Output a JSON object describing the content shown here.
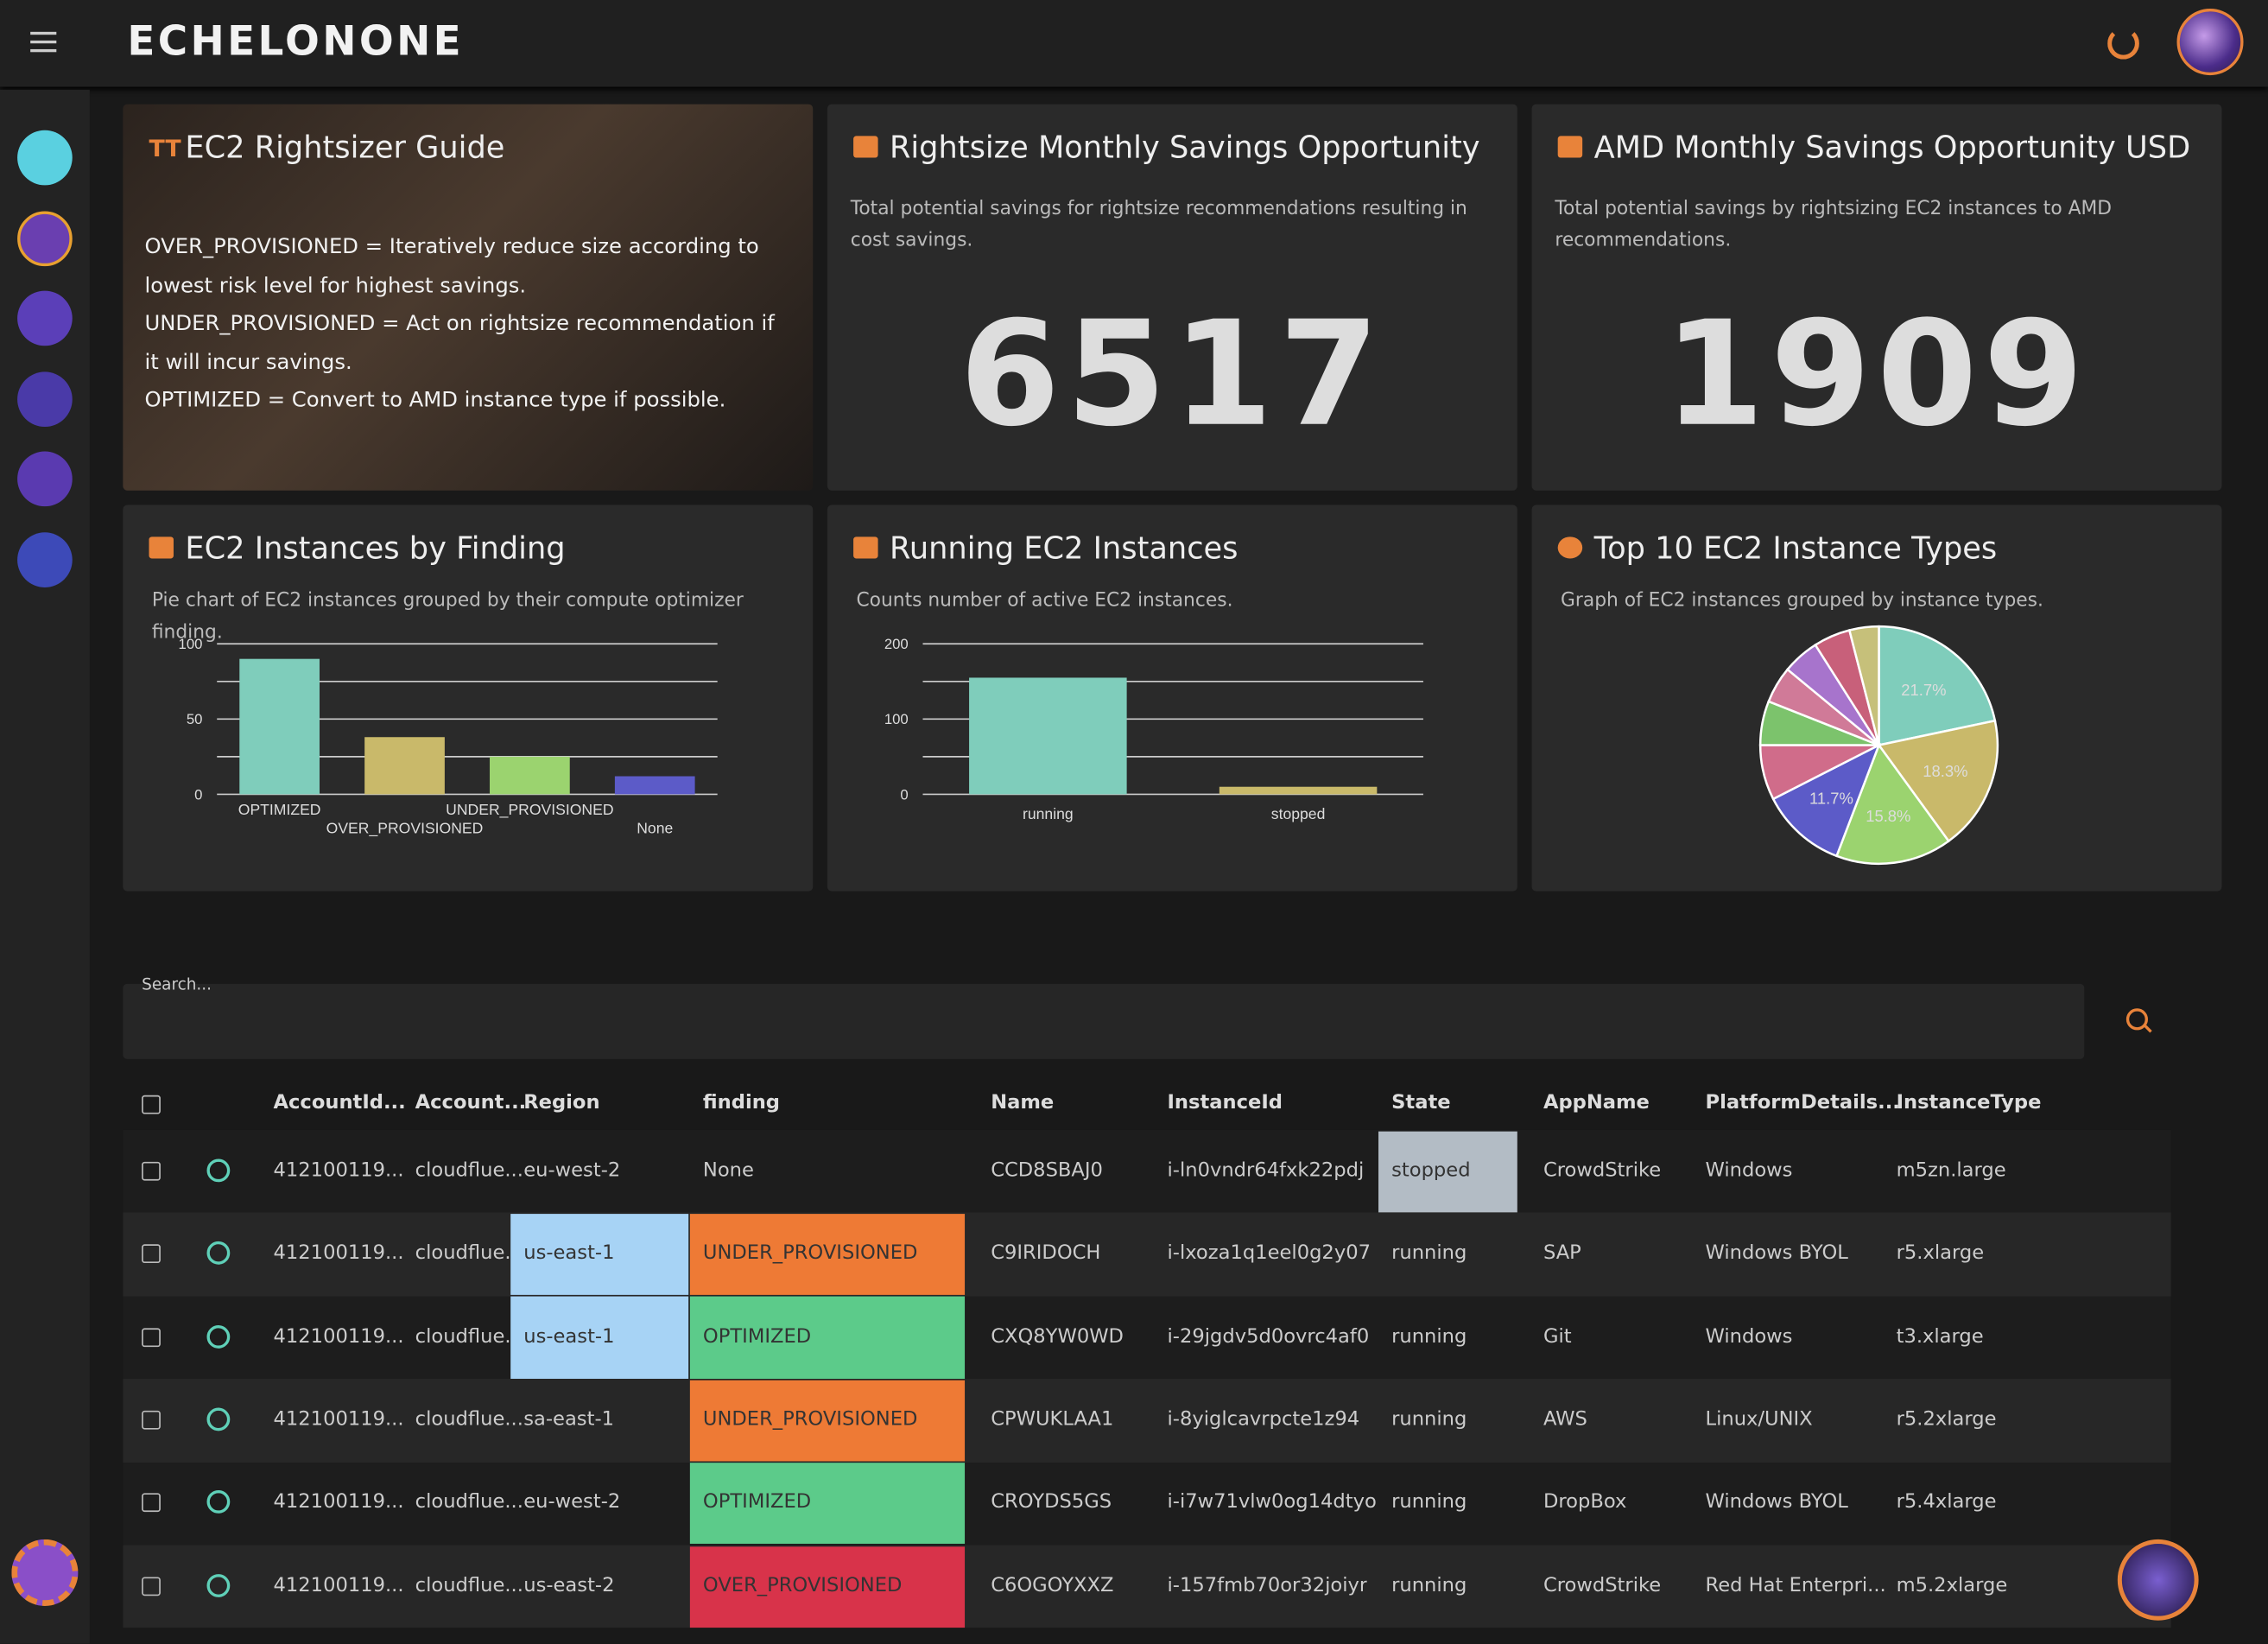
{
  "header": {
    "logo": "ECHELONONE"
  },
  "cards": [
    {
      "title": "EC2 Rightsizer Guide",
      "lines": [
        "OVER_PROVISIONED = Iteratively reduce size according to lowest risk level for highest savings.",
        "UNDER_PROVISIONED = Act on rightsize recommendation if it will incur savings.",
        "OPTIMIZED = Convert to AMD instance type if possible."
      ]
    },
    {
      "title": "Rightsize Monthly Savings Opportunity",
      "description": "Total potential savings for rightsize recommendations resulting in cost savings.",
      "value": 6517
    },
    {
      "title": "AMD Monthly Savings Opportunity USD",
      "description": "Total potential savings by rightsizing EC2 instances to AMD recommendations.",
      "value": 1909
    }
  ],
  "chart_data": [
    {
      "type": "bar",
      "title": "EC2 Instances by Finding",
      "subtitle": "Pie chart of EC2 instances grouped by their compute optimizer finding.",
      "categories": [
        "OPTIMIZED",
        "OVER_PROVISIONED",
        "UNDER_PROVISIONED",
        "None"
      ],
      "values": [
        90,
        38,
        25,
        12
      ],
      "colors": [
        "#7fcdbb",
        "#c9b96a",
        "#9bd36f",
        "#5c5bc8"
      ],
      "ylim": [
        0,
        100
      ],
      "yticks": [
        0,
        50,
        100
      ],
      "minor_yticks": [
        25,
        75
      ],
      "grid": true
    },
    {
      "type": "bar",
      "title": "Running EC2 Instances",
      "subtitle": "Counts number of active EC2 instances.",
      "categories": [
        "running",
        "stopped"
      ],
      "values": [
        155,
        10
      ],
      "colors": [
        "#7fcdbb",
        "#c9b96a"
      ],
      "ylim": [
        0,
        200
      ],
      "yticks": [
        0,
        100,
        200
      ],
      "minor_yticks": [
        50,
        150
      ],
      "grid": true
    },
    {
      "type": "pie",
      "title": "Top 10 EC2 Instance Types",
      "subtitle": "Graph of EC2 instances grouped by instance types.",
      "values": [
        21.7,
        18.3,
        15.8,
        11.7,
        7.5,
        6,
        5,
        5,
        5,
        4
      ],
      "value_labels": [
        "21.7%",
        "18.3%",
        "15.8%",
        "11.7%",
        null,
        null,
        null,
        null,
        null,
        null
      ],
      "colors": [
        "#7fcdbb",
        "#c9b96a",
        "#9bd36f",
        "#5c5bc8",
        "#d06c8a",
        "#7cc36c",
        "#d07a98",
        "#a774cc",
        "#c8607a",
        "#c6c07a"
      ]
    }
  ],
  "search": {
    "placeholder": "Search..."
  },
  "table": {
    "columns": [
      "AccountId...",
      "Account...",
      "Region",
      "finding",
      "Name",
      "InstanceId",
      "State",
      "AppName",
      "PlatformDetails...",
      "InstanceType"
    ],
    "rows": [
      [
        "412100119...",
        "cloudflue...",
        "eu-west-2",
        "None",
        "CCD8SBAJ0",
        "i-ln0vndr64fxk22pdj",
        "stopped",
        "CrowdStrike",
        "Windows",
        "m5zn.large"
      ],
      [
        "412100119...",
        "cloudflue...",
        "us-east-1",
        "UNDER_PROVISIONED",
        "C9IRIDOCH",
        "i-lxoza1q1eel0g2y07",
        "running",
        "SAP",
        "Windows BYOL",
        "r5.xlarge"
      ],
      [
        "412100119...",
        "cloudflue...",
        "us-east-1",
        "OPTIMIZED",
        "CXQ8YW0WD",
        "i-29jgdv5d0ovrc4af0",
        "running",
        "Git",
        "Windows",
        "t3.xlarge"
      ],
      [
        "412100119...",
        "cloudflue...",
        "sa-east-1",
        "UNDER_PROVISIONED",
        "CPWUKLAA1",
        "i-8yiglcavrpcte1z94",
        "running",
        "AWS",
        "Linux/UNIX",
        "r5.2xlarge"
      ],
      [
        "412100119...",
        "cloudflue...",
        "eu-west-2",
        "OPTIMIZED",
        "CROYDS5GS",
        "i-i7w71vlw0og14dtyo",
        "running",
        "DropBox",
        "Windows BYOL",
        "r5.4xlarge"
      ],
      [
        "412100119...",
        "cloudflue...",
        "us-east-2",
        "OVER_PROVISIONED",
        "C6OGOYXXZ",
        "i-157fmb70or32joiyr",
        "running",
        "CrowdStrike",
        "Red Hat Enterpri...",
        "m5.2xlarge"
      ]
    ],
    "cell_colors": {
      "Region": {
        "us-east-1": "#a7d3f5"
      },
      "finding": {
        "UNDER_PROVISIONED": "#ee7a35",
        "OPTIMIZED": "#5ccb8a",
        "OVER_PROVISIONED": "#d8334a"
      },
      "State": {
        "stopped": "#b3bcc5"
      }
    }
  }
}
